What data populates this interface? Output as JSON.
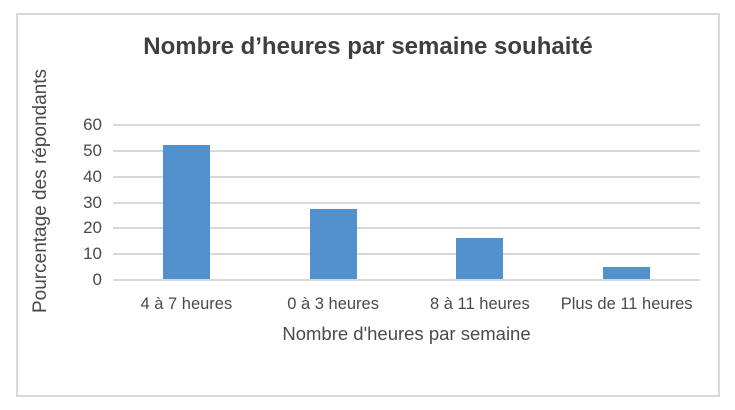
{
  "chart_data": {
    "type": "bar",
    "title": "Nombre d’heures par semaine souhaité",
    "categories": [
      "4 à 7 heures",
      "0 à 3 heures",
      "8 à 11 heures",
      "Plus de 11 heures"
    ],
    "values": [
      52,
      27,
      16,
      4.5
    ],
    "xlabel": "Nombre d'heures par semaine",
    "ylabel": "Pourcentage des répondants",
    "ylim": [
      0,
      60
    ],
    "yticks": [
      0,
      10,
      20,
      30,
      40,
      50,
      60
    ],
    "grid": true,
    "legend": false,
    "colors": {
      "bar": "#5291CE",
      "gridline": "#D9D9D9",
      "title_text": "#3F3F3F",
      "axis_text": "#4A4A4A",
      "frame_border": "#D9D9D9"
    }
  }
}
